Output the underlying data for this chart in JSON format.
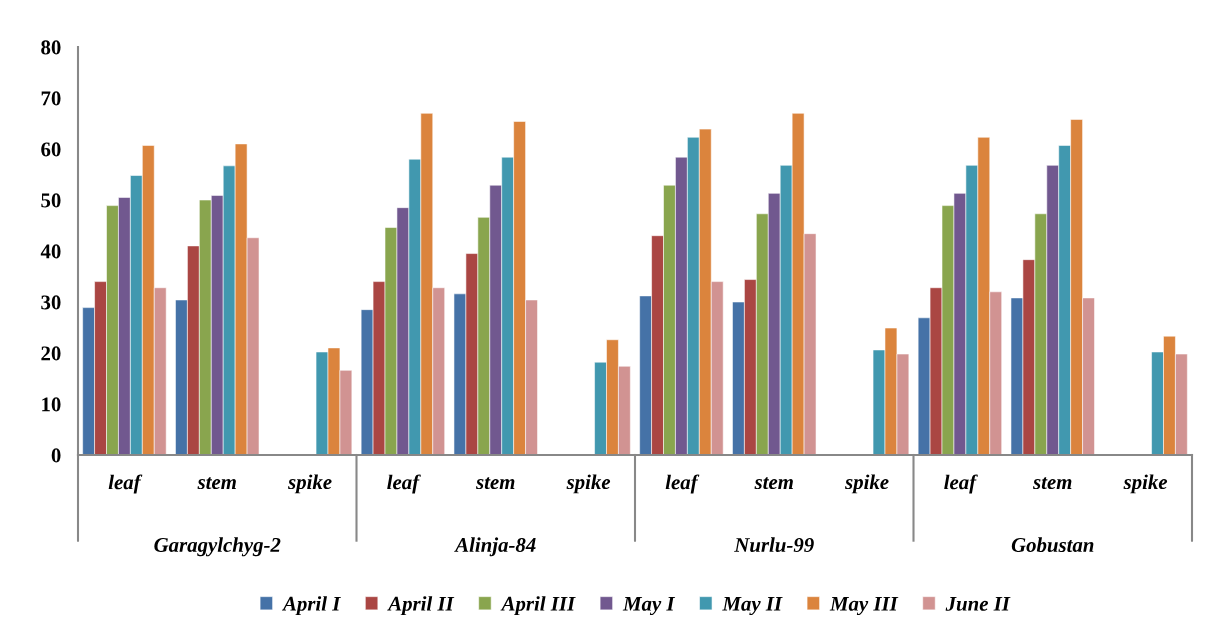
{
  "chart_data": {
    "type": "bar",
    "categories": [
      "leaf",
      "stem",
      "spike",
      "leaf",
      "stem",
      "spike",
      "leaf",
      "stem",
      "spike",
      "leaf",
      "stem",
      "spike"
    ],
    "annotations": [
      "Garagylchyg-2",
      "Alinja-84",
      "Nurlu-99",
      "Gobustan"
    ],
    "series": [
      {
        "name": "April I",
        "color": "#4572a7",
        "values": [
          28.9,
          30.4,
          null,
          28.5,
          31.6,
          null,
          31.2,
          30.0,
          null,
          26.9,
          30.8,
          null
        ]
      },
      {
        "name": "April II",
        "color": "#aa4643",
        "values": [
          34.0,
          41.0,
          null,
          34.0,
          39.5,
          null,
          43.0,
          34.4,
          null,
          32.8,
          38.3,
          null
        ]
      },
      {
        "name": "April III",
        "color": "#89a54e",
        "values": [
          48.9,
          50.0,
          null,
          44.6,
          46.6,
          null,
          52.9,
          47.3,
          null,
          48.9,
          47.3,
          null
        ]
      },
      {
        "name": "May I",
        "color": "#71588f",
        "values": [
          50.5,
          50.9,
          null,
          48.5,
          52.9,
          null,
          58.4,
          51.3,
          null,
          51.3,
          56.8,
          null
        ]
      },
      {
        "name": "May II",
        "color": "#4198af",
        "values": [
          54.8,
          56.7,
          20.2,
          58.0,
          58.4,
          18.2,
          62.3,
          56.8,
          20.6,
          56.8,
          60.7,
          20.2
        ]
      },
      {
        "name": "May III",
        "color": "#db843d",
        "values": [
          60.7,
          61.0,
          21.0,
          67.0,
          65.4,
          22.6,
          63.9,
          67.0,
          24.9,
          62.3,
          65.8,
          23.3
        ]
      },
      {
        "name": "June II",
        "color": "#d19392",
        "values": [
          32.8,
          42.6,
          16.6,
          32.8,
          30.4,
          17.4,
          34.0,
          43.4,
          19.8,
          32.0,
          30.8,
          19.8
        ]
      }
    ],
    "ylim": [
      0,
      80
    ],
    "yticks": [
      0,
      10,
      20,
      30,
      40,
      50,
      60,
      70,
      80
    ],
    "grid": false,
    "legend": "bottom"
  }
}
